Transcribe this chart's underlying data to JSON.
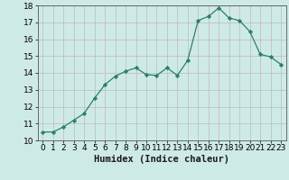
{
  "x": [
    0,
    1,
    2,
    3,
    4,
    5,
    6,
    7,
    8,
    9,
    10,
    11,
    12,
    13,
    14,
    15,
    16,
    17,
    18,
    19,
    20,
    21,
    22,
    23
  ],
  "y": [
    10.5,
    10.5,
    10.8,
    11.2,
    11.6,
    12.5,
    13.3,
    13.8,
    14.1,
    14.3,
    13.9,
    13.85,
    14.3,
    13.85,
    14.75,
    17.1,
    17.35,
    17.85,
    17.25,
    17.1,
    16.45,
    15.1,
    14.95,
    14.5
  ],
  "xlabel": "Humidex (Indice chaleur)",
  "xlim": [
    -0.5,
    23.5
  ],
  "ylim": [
    10,
    18
  ],
  "yticks": [
    10,
    11,
    12,
    13,
    14,
    15,
    16,
    17,
    18
  ],
  "xticks": [
    0,
    1,
    2,
    3,
    4,
    5,
    6,
    7,
    8,
    9,
    10,
    11,
    12,
    13,
    14,
    15,
    16,
    17,
    18,
    19,
    20,
    21,
    22,
    23
  ],
  "line_color": "#2a7f6f",
  "marker_color": "#2a7f6f",
  "bg_color": "#ceeae7",
  "grid_color": "#c0b8b8",
  "tick_fontsize": 6.5,
  "xlabel_fontsize": 7.5
}
